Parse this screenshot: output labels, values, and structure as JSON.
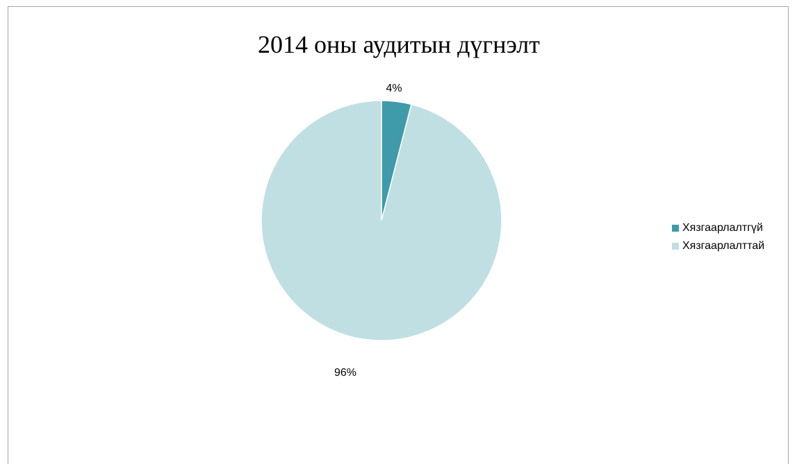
{
  "chart_data": {
    "type": "pie",
    "title": "2014 оны аудитын дүгнэлт",
    "categories": [
      "Хязгаарлалтгүй",
      "Хязгаарлалттай"
    ],
    "values": [
      4,
      96
    ],
    "data_labels": [
      "4%",
      "96%"
    ],
    "colors": [
      "#3f9aaa",
      "#c0dfe3"
    ],
    "legend_position": "right",
    "start_angle": "12 o'clock",
    "direction": "clockwise"
  }
}
